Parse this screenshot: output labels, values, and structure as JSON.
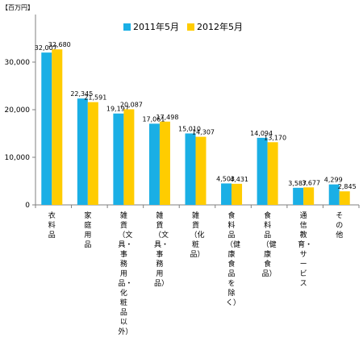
{
  "unit_label": "【百万円】",
  "colors": {
    "series2011": "#1AAFE5",
    "series2012": "#FFCC00"
  },
  "chart_data": {
    "type": "bar",
    "title": "",
    "xlabel": "",
    "ylabel": "【百万円】",
    "ylim": [
      0,
      40000
    ],
    "yticks": [
      0,
      10000,
      20000,
      30000
    ],
    "ytick_labels": [
      "0",
      "10,000",
      "20,000",
      "30,000"
    ],
    "grid": false,
    "legend_position": "top",
    "categories": [
      "衣料品",
      "家庭用品",
      "雑貨（文具・事務用品・化粧品以外）",
      "雑貨（文具・事務用品）",
      "雑貨（化粧品）",
      "食料品（健康食品を除く）",
      "食料品（健康食品）",
      "通信教育・サービス",
      "その他"
    ],
    "series": [
      {
        "name": "2011年5月",
        "values": [
          32007,
          22345,
          19197,
          17061,
          15010,
          4503,
          14094,
          3587,
          4299
        ],
        "labels": [
          "32,007",
          "22,345",
          "19,197",
          "17,061",
          "15,010",
          "4,503",
          "14,094",
          "3,587",
          "4,299"
        ]
      },
      {
        "name": "2012年5月",
        "values": [
          32680,
          21591,
          20087,
          17498,
          14307,
          4431,
          13170,
          3677,
          2845
        ],
        "labels": [
          "32,680",
          "21,591",
          "20,087",
          "17,498",
          "14,307",
          "4,431",
          "13,170",
          "3,677",
          "2,845"
        ]
      }
    ]
  }
}
